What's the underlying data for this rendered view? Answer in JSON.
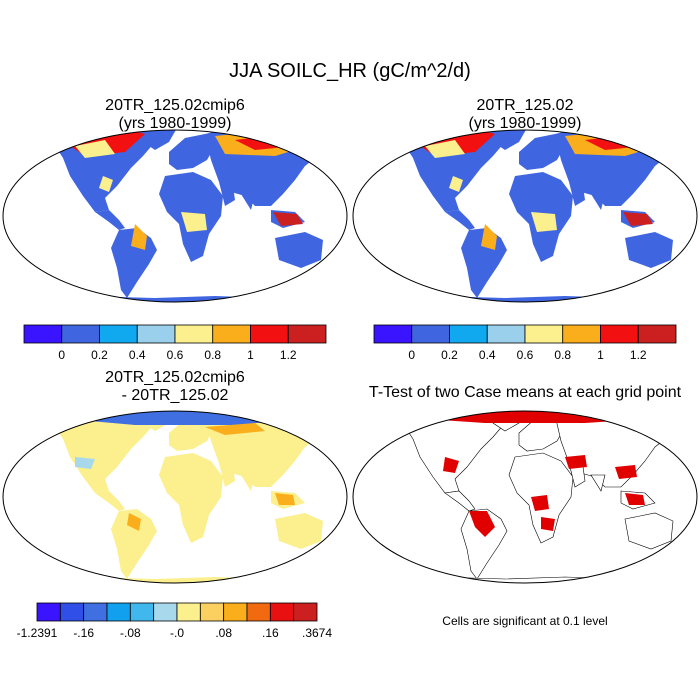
{
  "title": "JJA SOILC_HR (gC/m^2/d)",
  "panels": [
    {
      "id": "case1",
      "title_line1": "20TR_125.02cmip6",
      "title_line2": "(yrs 1980-1999)"
    },
    {
      "id": "case2",
      "title_line1": "20TR_125.02",
      "title_line2": "(yrs 1980-1999)"
    },
    {
      "id": "diff",
      "title_line1": "20TR_125.02cmip6",
      "title_line2": "- 20TR_125.02"
    },
    {
      "id": "ttest",
      "title_line1": "T-Test of two Case means at each grid point",
      "title_line2": ""
    }
  ],
  "colorbars": {
    "cases": {
      "colors": [
        "#3a14ff",
        "#3f66e0",
        "#10a8ee",
        "#9ad0ec",
        "#fbef8e",
        "#fbae1c",
        "#f21010",
        "#cc2020"
      ],
      "labels": [
        "0",
        "0.2",
        "0.4",
        "0.6",
        "0.8",
        "1",
        "1.2"
      ]
    },
    "diff": {
      "colors": [
        "#3a14ff",
        "#2f4fe8",
        "#3f6fe0",
        "#10a0ee",
        "#40b8ee",
        "#a8d8ec",
        "#fbef8e",
        "#fbd060",
        "#fbae1c",
        "#f26a10",
        "#e81010",
        "#cc2020"
      ],
      "labels": [
        "-1.2391",
        "-.16",
        "-.08",
        "-.0",
        ".08",
        ".16",
        ".3674"
      ]
    }
  },
  "significance_note": "Cells are significant at 0.1 level",
  "significance_color": "#e00000"
}
